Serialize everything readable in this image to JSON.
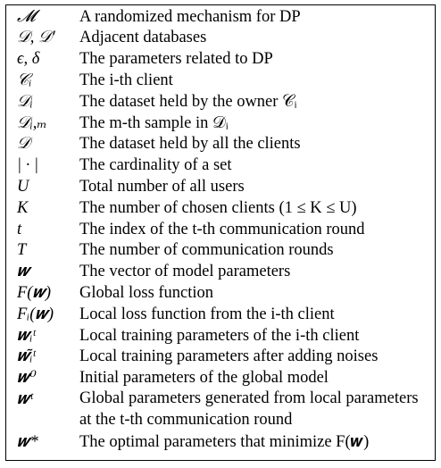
{
  "rows": [
    {
      "symbol": "𝓜",
      "description": "A randomized mechanism for DP"
    },
    {
      "symbol": "𝒟, 𝒟′",
      "description": "Adjacent databases"
    },
    {
      "symbol": "ϵ, δ",
      "description": "The parameters related to DP"
    },
    {
      "symbol": "𝒞ᵢ",
      "description": "The i-th client"
    },
    {
      "symbol": "𝒟ᵢ",
      "description": "The dataset held by the owner 𝒞ᵢ"
    },
    {
      "symbol": "𝒟ᵢ,ₘ",
      "description": "The m-th sample in 𝒟ᵢ"
    },
    {
      "symbol": "𝒟",
      "description": "The dataset held by all the clients"
    },
    {
      "symbol": "| · |",
      "description": "The cardinality of a set"
    },
    {
      "symbol": "U",
      "description": "Total number of all users"
    },
    {
      "symbol": "K",
      "description": "The number of chosen clients (1 ≤ K ≤ U)"
    },
    {
      "symbol": "t",
      "description": "The index of the t-th communication round"
    },
    {
      "symbol": "T",
      "description": "The number of communication rounds"
    },
    {
      "symbol": "𝒘",
      "description": "The vector of model parameters"
    },
    {
      "symbol": "F(𝒘)",
      "description": "Global loss function"
    },
    {
      "symbol": "Fᵢ(𝒘)",
      "description": "Local loss function from the i-th client"
    },
    {
      "symbol": "𝒘ᵢᵗ",
      "description": "Local training parameters of the i-th client"
    },
    {
      "symbol": "𝒘̃ᵢᵗ",
      "description": "Local training parameters after adding noises"
    },
    {
      "symbol": "𝒘⁰",
      "description": "Initial parameters of the global model"
    },
    {
      "symbol": "𝒘ᵗ",
      "description": "Global parameters generated from local parameters at the t-th communication round"
    },
    {
      "symbol": "𝒘*",
      "description": "The optimal parameters that minimize F(𝒘)"
    }
  ]
}
